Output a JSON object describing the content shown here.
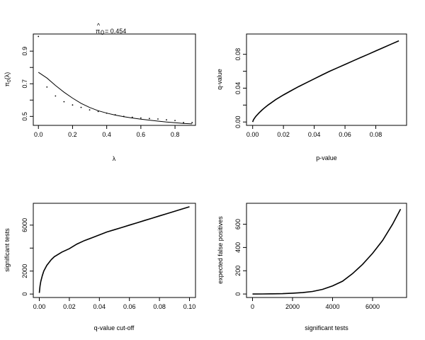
{
  "chart_data": [
    {
      "type": "scatter",
      "title_pre": "π",
      "title_hat": "^",
      "title_sub": "0",
      "title_value": "= 0.454",
      "xlabel": "λ",
      "ylabel_pre": "π",
      "ylabel_sub": "0",
      "ylabel_post": "(λ)",
      "xlim": [
        -0.03,
        0.92
      ],
      "ylim": [
        0.445,
        1.005
      ],
      "xticks": [
        0,
        0.2,
        0.4,
        0.6,
        0.8
      ],
      "xtick_labels": [
        "0.0",
        "0.2",
        "0.4",
        "0.6",
        "0.8"
      ],
      "yticks": [
        0.5,
        0.6,
        0.7,
        0.8,
        0.9
      ],
      "ytick_labels": [
        "0.5",
        "",
        "0.7",
        "",
        "0.9"
      ],
      "points": {
        "x": [
          0,
          0.05,
          0.1,
          0.15,
          0.2,
          0.25,
          0.3,
          0.35,
          0.4,
          0.45,
          0.5,
          0.55,
          0.6,
          0.65,
          0.7,
          0.75,
          0.8,
          0.85,
          0.9
        ],
        "y": [
          0.99,
          0.68,
          0.625,
          0.59,
          0.57,
          0.555,
          0.54,
          0.53,
          0.52,
          0.51,
          0.5,
          0.495,
          0.49,
          0.487,
          0.484,
          0.479,
          0.475,
          0.462,
          0.462
        ]
      },
      "fit_curve": {
        "x": [
          0,
          0.05,
          0.1,
          0.15,
          0.2,
          0.25,
          0.3,
          0.35,
          0.4,
          0.45,
          0.5,
          0.55,
          0.6,
          0.65,
          0.7,
          0.75,
          0.8,
          0.85,
          0.9
        ],
        "y": [
          0.77,
          0.735,
          0.69,
          0.648,
          0.612,
          0.58,
          0.555,
          0.535,
          0.52,
          0.508,
          0.498,
          0.49,
          0.483,
          0.477,
          0.471,
          0.466,
          0.461,
          0.457,
          0.454
        ]
      }
    },
    {
      "type": "line",
      "xlabel": "p-value",
      "ylabel": "q-value",
      "xlim": [
        -0.004,
        0.1
      ],
      "ylim": [
        -0.004,
        0.104
      ],
      "xticks": [
        0,
        0.02,
        0.04,
        0.06,
        0.08
      ],
      "xtick_labels": [
        "0.00",
        "0.02",
        "0.04",
        "0.06",
        "0.08"
      ],
      "yticks": [
        0,
        0.02,
        0.04,
        0.06,
        0.08
      ],
      "ytick_labels": [
        "0.00",
        "",
        "0.04",
        "",
        "0.08"
      ],
      "series": {
        "x": [
          0,
          0.0005,
          0.001,
          0.002,
          0.004,
          0.006,
          0.008,
          0.01,
          0.015,
          0.02,
          0.025,
          0.03,
          0.035,
          0.04,
          0.045,
          0.05,
          0.055,
          0.06,
          0.065,
          0.07,
          0.075,
          0.08,
          0.085,
          0.09,
          0.095
        ],
        "y": [
          0,
          0.0025,
          0.004,
          0.0065,
          0.0105,
          0.014,
          0.0172,
          0.02,
          0.0265,
          0.032,
          0.037,
          0.042,
          0.0465,
          0.051,
          0.0555,
          0.06,
          0.064,
          0.068,
          0.072,
          0.076,
          0.08,
          0.084,
          0.088,
          0.092,
          0.096
        ]
      }
    },
    {
      "type": "line",
      "xlabel": "q-value cut-off",
      "ylabel": "significant tests",
      "xlim": [
        -0.004,
        0.104
      ],
      "ylim": [
        -300,
        7900
      ],
      "xticks": [
        0,
        0.02,
        0.04,
        0.06,
        0.08,
        0.1
      ],
      "xtick_labels": [
        "0.00",
        "0.02",
        "0.04",
        "0.06",
        "0.08",
        "0.10"
      ],
      "yticks": [
        0,
        2000,
        4000,
        6000
      ],
      "ytick_labels": [
        "0",
        "2000",
        "",
        "6000"
      ],
      "series": {
        "x": [
          0,
          0.0005,
          0.001,
          0.002,
          0.003,
          0.005,
          0.008,
          0.01,
          0.015,
          0.02,
          0.025,
          0.03,
          0.035,
          0.04,
          0.045,
          0.05,
          0.055,
          0.06,
          0.065,
          0.07,
          0.075,
          0.08,
          0.085,
          0.09,
          0.095,
          0.1
        ],
        "y": [
          100,
          700,
          1100,
          1600,
          2000,
          2500,
          3000,
          3250,
          3650,
          3950,
          4350,
          4650,
          4900,
          5150,
          5400,
          5600,
          5800,
          6000,
          6200,
          6400,
          6600,
          6800,
          7000,
          7200,
          7400,
          7600
        ]
      }
    },
    {
      "type": "line",
      "xlabel": "significant tests",
      "ylabel": "expected false positives",
      "xlim": [
        -300,
        7700
      ],
      "ylim": [
        -30,
        780
      ],
      "xticks": [
        0,
        2000,
        4000,
        6000
      ],
      "xtick_labels": [
        "0",
        "2000",
        "4000",
        "6000"
      ],
      "yticks": [
        0,
        200,
        400,
        600
      ],
      "ytick_labels": [
        "0",
        "200",
        "400",
        "600"
      ],
      "series": {
        "x": [
          0,
          500,
          1000,
          1500,
          2000,
          2500,
          3000,
          3500,
          4000,
          4500,
          5000,
          5500,
          6000,
          6500,
          7000,
          7400
        ],
        "y": [
          0,
          0.5,
          1.5,
          3,
          7,
          12,
          22,
          40,
          70,
          110,
          175,
          255,
          350,
          460,
          600,
          730
        ]
      }
    }
  ]
}
